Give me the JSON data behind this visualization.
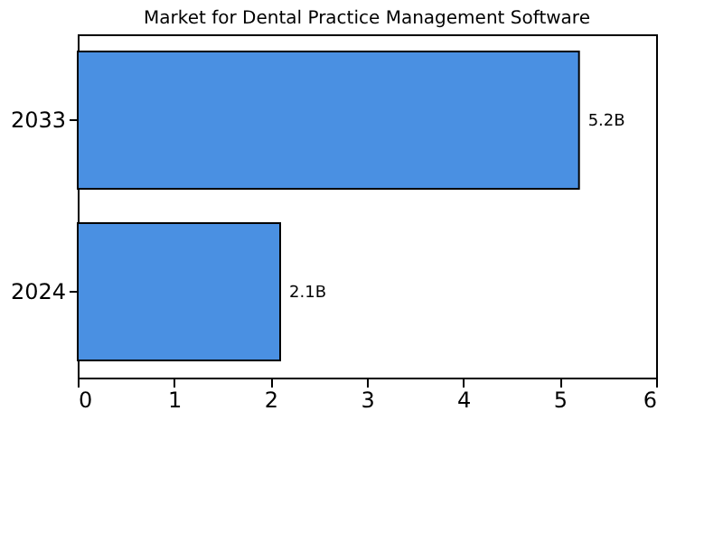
{
  "chart_data": {
    "type": "bar",
    "orientation": "horizontal",
    "title": "Market for Dental Practice Management Software",
    "categories": [
      "2033",
      "2024"
    ],
    "values": [
      5.2,
      2.1
    ],
    "value_labels": [
      "5.2B",
      "2.1B"
    ],
    "color": "#4a90e2",
    "xlim": [
      0,
      6
    ],
    "xticks": [
      0,
      1,
      2,
      3,
      4,
      5,
      6
    ],
    "grid": false
  }
}
